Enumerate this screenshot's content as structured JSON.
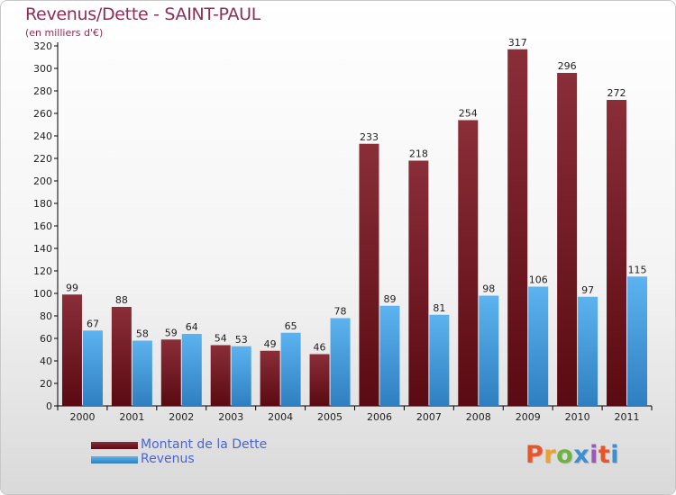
{
  "header": {
    "title": "Revenus/Dette - SAINT-PAUL",
    "subtitle": "(en milliers d'€)"
  },
  "legend": {
    "items": [
      {
        "label": "Montant de la Dette",
        "color": "#6b1a1f"
      },
      {
        "label": "Revenus",
        "color": "#4fa3e0"
      }
    ]
  },
  "logo": {
    "text": "Proxiti",
    "colors": [
      "#e8542b",
      "#f0a02a",
      "#6cb33f",
      "#3b8fd4",
      "#9b59b6",
      "#e8542b",
      "#3b8fd4"
    ]
  },
  "chart_data": {
    "type": "bar",
    "categories": [
      "2000",
      "2001",
      "2002",
      "2003",
      "2004",
      "2005",
      "2006",
      "2007",
      "2008",
      "2009",
      "2010",
      "2011"
    ],
    "series": [
      {
        "name": "Montant de la Dette",
        "color": "#6b1a1f",
        "values": [
          99,
          88,
          59,
          54,
          49,
          46,
          233,
          218,
          254,
          317,
          296,
          272
        ]
      },
      {
        "name": "Revenus",
        "color": "#4fa3e0",
        "values": [
          67,
          58,
          64,
          53,
          65,
          78,
          89,
          81,
          98,
          106,
          97,
          115
        ]
      }
    ],
    "ylim": [
      0,
      320
    ],
    "yticks": [
      0,
      20,
      40,
      60,
      80,
      100,
      120,
      140,
      160,
      180,
      200,
      220,
      240,
      260,
      280,
      300,
      320
    ],
    "grid": false,
    "legend_position": "bottom-left"
  }
}
